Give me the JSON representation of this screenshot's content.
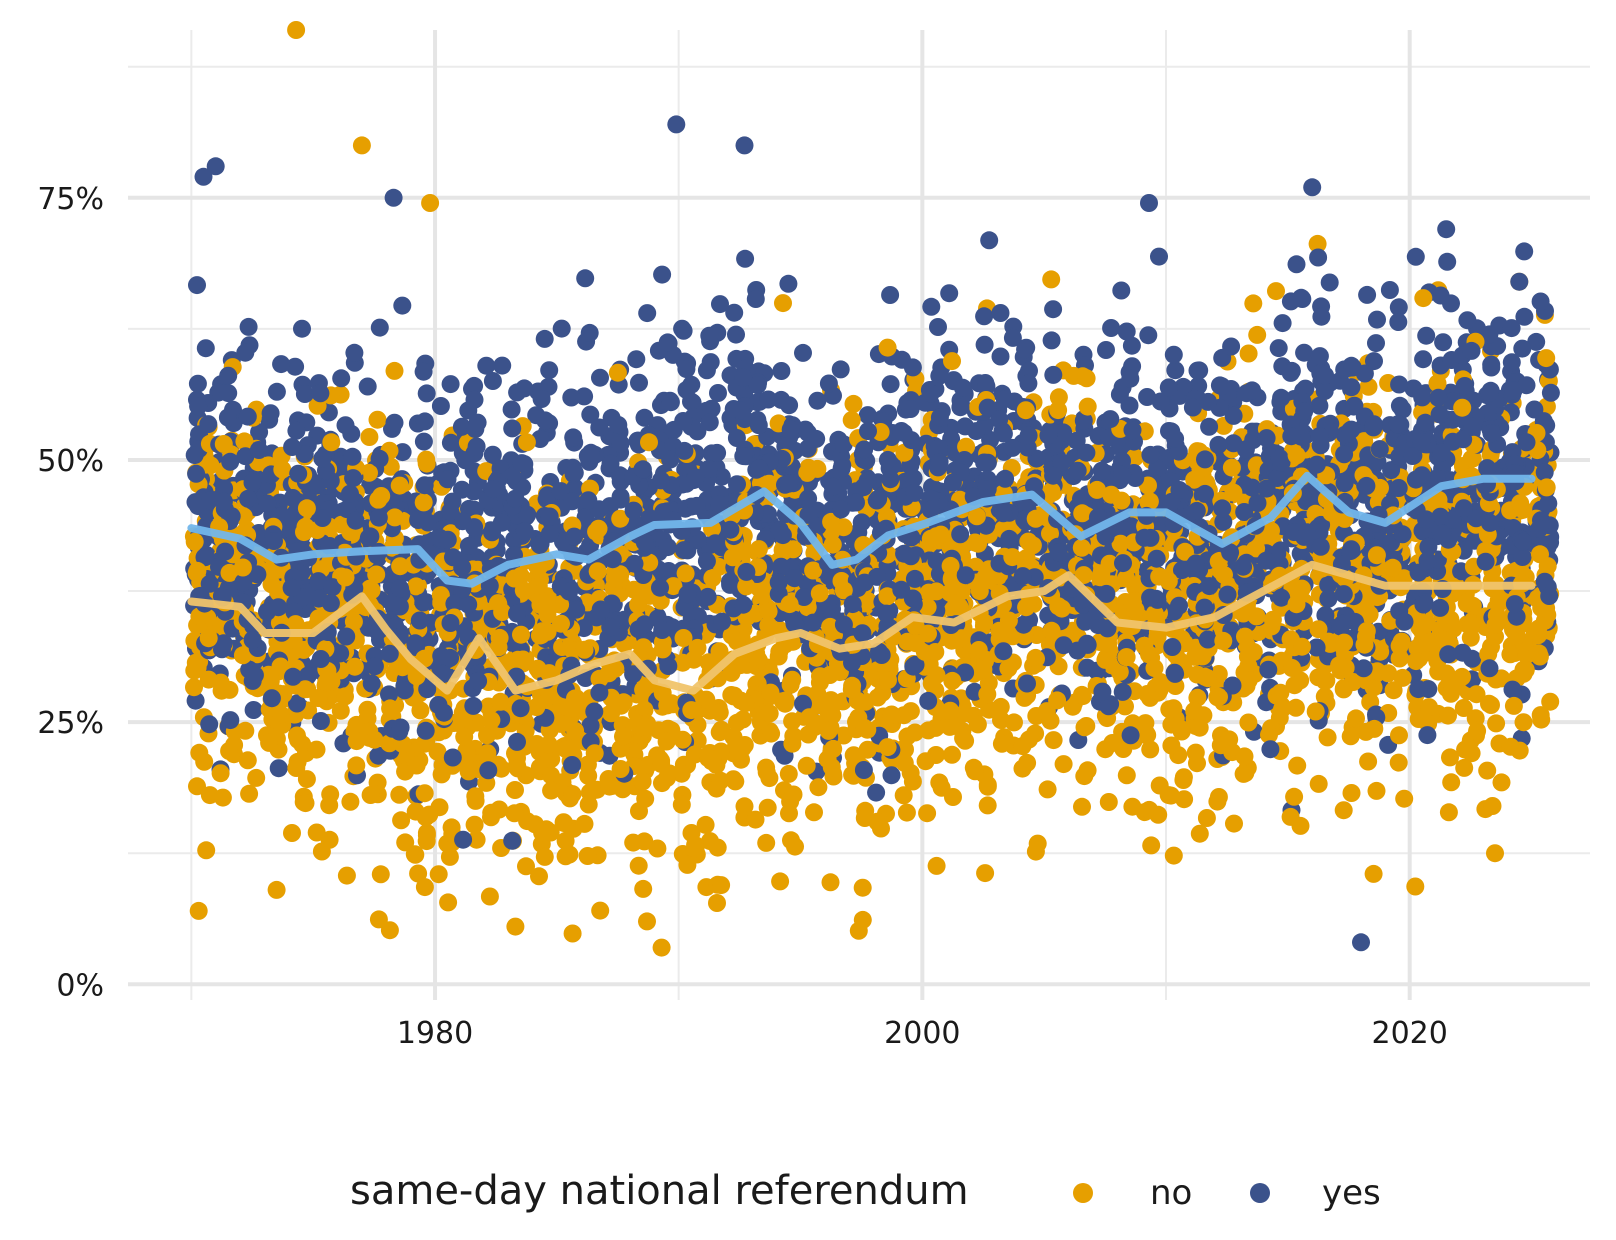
{
  "chart_data": {
    "type": "scatter",
    "title": "",
    "xlabel": "",
    "ylabel": "",
    "xlim": [
      1967.4,
      2027.4
    ],
    "ylim": [
      -1.5,
      91
    ],
    "x_ticks": [
      1980,
      2000,
      2020
    ],
    "x_tick_labels": [
      "1980",
      "2000",
      "2020"
    ],
    "y_ticks": [
      0,
      25,
      50,
      75
    ],
    "y_tick_labels": [
      "0%",
      "25%",
      "50%",
      "75%"
    ],
    "y_minor_ticks": [
      12.5,
      37.5,
      62.5,
      87.5
    ],
    "x_minor_ticks": [
      1970,
      1990,
      2010
    ],
    "grid": true,
    "legend": {
      "position": "bottom",
      "title": "same-day national referendum",
      "entries": [
        {
          "label": "no",
          "color": "#E69F00"
        },
        {
          "label": "yes",
          "color": "#3B528B"
        }
      ]
    },
    "series": [
      {
        "name": "no",
        "color": "#E69F00",
        "x_range": [
          1970,
          2025
        ],
        "point_count": 2800,
        "points_sample": [
          [
            1970.3,
            7
          ],
          [
            1973.5,
            9
          ],
          [
            1974.3,
            91
          ],
          [
            1977,
            80
          ],
          [
            1979.8,
            74.5
          ],
          [
            1983.3,
            5.5
          ],
          [
            1988.7,
            6
          ],
          [
            1989.3,
            3.5
          ],
          [
            2023.5,
            12.5
          ],
          [
            2023.4,
            17
          ],
          [
            2024.5,
            67
          ]
        ],
        "smooth_x": [
          1970,
          1972,
          1973,
          1975,
          1977,
          1978,
          1979,
          1980.5,
          1981.8,
          1983.3,
          1985,
          1986.5,
          1988,
          1989,
          1990.6,
          1992.3,
          1994,
          1995,
          1996.6,
          1998,
          1999.6,
          2001.3,
          2003.5,
          2005,
          2006,
          2008,
          2010,
          2012,
          2014,
          2016,
          2017.5,
          2019,
          2021,
          2023,
          2025
        ],
        "smooth_y": [
          36.5,
          36,
          33.5,
          33.5,
          37,
          33.8,
          31,
          28,
          33,
          28,
          29,
          30.5,
          31.5,
          29,
          28,
          31.5,
          33,
          33.5,
          32,
          32.5,
          35,
          34.5,
          37,
          37.5,
          39,
          34.5,
          34,
          35,
          37.5,
          40,
          39,
          38,
          38,
          38,
          38
        ]
      },
      {
        "name": "yes",
        "color": "#3B528B",
        "x_range": [
          1970,
          2025
        ],
        "point_count": 3000,
        "points_sample": [
          [
            1970.5,
            77
          ],
          [
            1971,
            78
          ],
          [
            1978.3,
            75
          ],
          [
            1989.9,
            82
          ],
          [
            1992.7,
            80
          ],
          [
            2009.3,
            74.5
          ],
          [
            2018,
            4
          ],
          [
            2016,
            76
          ],
          [
            2021.5,
            72
          ],
          [
            2024.5,
            67
          ]
        ],
        "smooth_x": [
          1970,
          1972,
          1973.5,
          1975,
          1977,
          1979.3,
          1980.5,
          1981.5,
          1983,
          1985,
          1986.3,
          1988,
          1989,
          1991.3,
          1993.5,
          1995,
          1996.3,
          1997.3,
          1998.6,
          2000.2,
          2002.5,
          2004.5,
          2006.5,
          2008.5,
          2010,
          2012.3,
          2014.3,
          2015.8,
          2017.5,
          2019,
          2021.3,
          2023,
          2025
        ],
        "smooth_y": [
          43.5,
          42.5,
          40.5,
          41,
          41.3,
          41.5,
          38.5,
          38.2,
          40,
          41,
          40.5,
          42.7,
          43.8,
          44,
          47,
          44,
          40,
          40.5,
          42.8,
          44,
          46,
          46.7,
          42.7,
          45,
          45,
          42,
          44.5,
          48.5,
          45,
          44,
          47.5,
          48.2,
          48.2
        ]
      }
    ],
    "smooth_colors": {
      "no": "#F0C46B",
      "yes": "#72B6EB"
    }
  }
}
